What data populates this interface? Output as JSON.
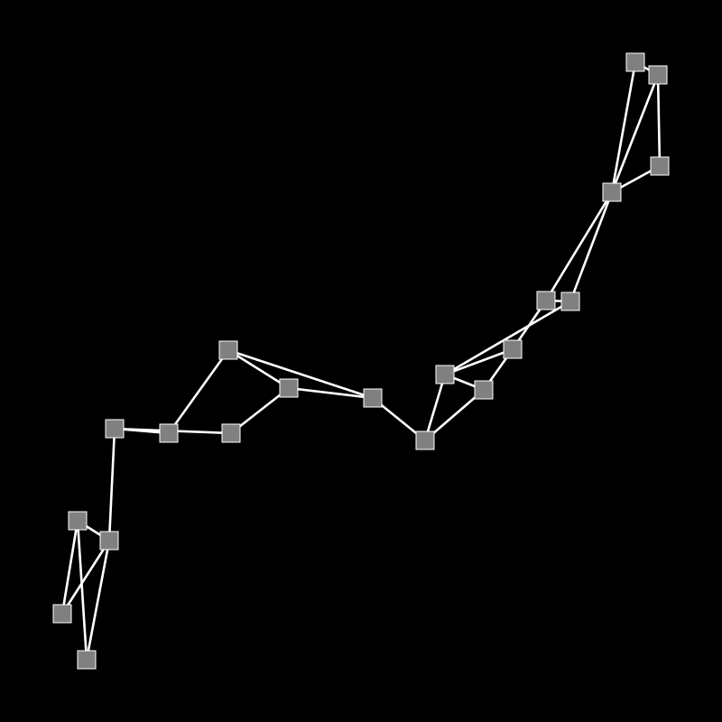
{
  "diagram": {
    "type": "node-link-graph",
    "background_color": "#000000",
    "node_color": "#808080",
    "node_border_color": "#ffffff",
    "edge_color": "#ffffff",
    "node_shape": "square",
    "nodes": [
      {
        "id": "n1"
      },
      {
        "id": "n2"
      },
      {
        "id": "n3"
      },
      {
        "id": "n4"
      },
      {
        "id": "n5"
      },
      {
        "id": "n6"
      },
      {
        "id": "n7"
      },
      {
        "id": "n8"
      },
      {
        "id": "n9"
      },
      {
        "id": "n10"
      },
      {
        "id": "n11"
      },
      {
        "id": "n12"
      },
      {
        "id": "n13"
      },
      {
        "id": "n14"
      },
      {
        "id": "n15"
      },
      {
        "id": "n16"
      },
      {
        "id": "n17"
      },
      {
        "id": "n18"
      },
      {
        "id": "n19"
      },
      {
        "id": "n20"
      },
      {
        "id": "n21"
      }
    ],
    "edges": [
      [
        "n1",
        "n3"
      ],
      [
        "n1",
        "n4"
      ],
      [
        "n2",
        "n3"
      ],
      [
        "n2",
        "n4"
      ],
      [
        "n3",
        "n4"
      ],
      [
        "n4",
        "n5"
      ],
      [
        "n5",
        "n6"
      ],
      [
        "n5",
        "n7"
      ],
      [
        "n6",
        "n8"
      ],
      [
        "n7",
        "n9"
      ],
      [
        "n8",
        "n9"
      ],
      [
        "n8",
        "n10"
      ],
      [
        "n9",
        "n10"
      ],
      [
        "n10",
        "n11"
      ],
      [
        "n11",
        "n12"
      ],
      [
        "n11",
        "n13"
      ],
      [
        "n12",
        "n13"
      ],
      [
        "n12",
        "n14"
      ],
      [
        "n12",
        "n16"
      ],
      [
        "n13",
        "n14"
      ],
      [
        "n14",
        "n15"
      ],
      [
        "n15",
        "n16"
      ],
      [
        "n15",
        "n17"
      ],
      [
        "n16",
        "n18"
      ],
      [
        "n17",
        "n18"
      ],
      [
        "n18",
        "n19"
      ],
      [
        "n18",
        "n20"
      ],
      [
        "n18",
        "n21"
      ],
      [
        "n19",
        "n21"
      ],
      [
        "n20",
        "n21"
      ]
    ]
  }
}
